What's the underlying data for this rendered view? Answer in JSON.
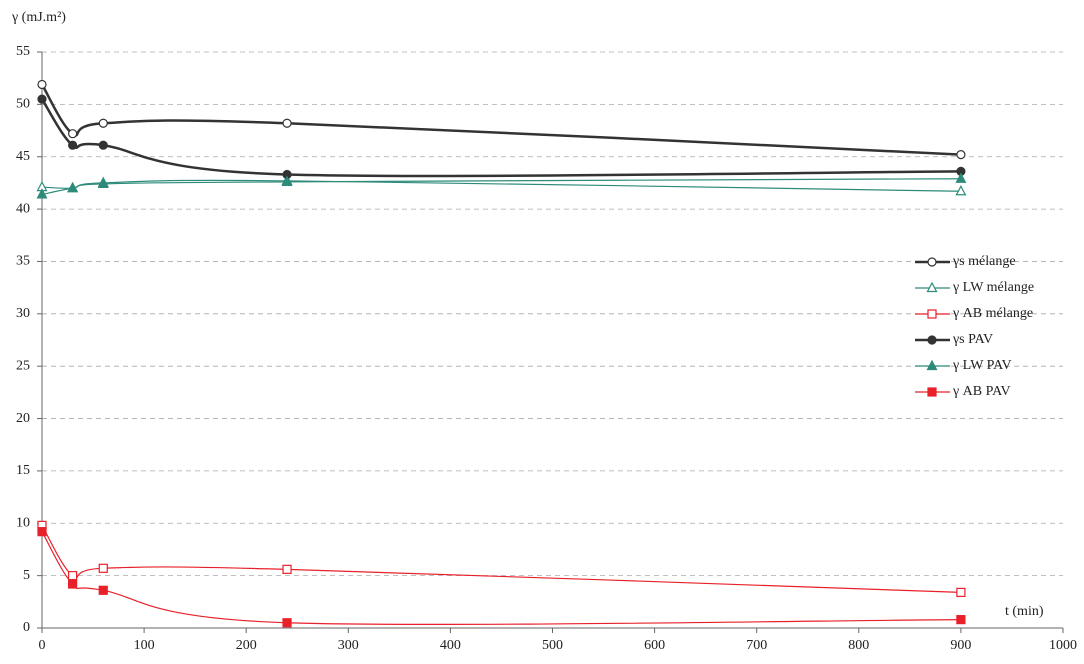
{
  "chart_data": {
    "type": "line",
    "y_label": "γ  (mJ.m²)",
    "x_label": "t (min)",
    "x": [
      0,
      30,
      60,
      240,
      900
    ],
    "series": [
      {
        "name": "γs mélange",
        "color": "#333333",
        "marker": "circle",
        "filled": false,
        "width": 2.5,
        "values": [
          51.9,
          47.2,
          48.2,
          48.2,
          45.2
        ]
      },
      {
        "name": "γ LW mélange",
        "color": "#2e8b7a",
        "marker": "triangle",
        "filled": false,
        "width": 1.2,
        "values": [
          42.1,
          42.0,
          42.5,
          42.7,
          41.7
        ]
      },
      {
        "name": "γ AB mélange",
        "color": "#e8202a",
        "marker": "square",
        "filled": false,
        "width": 1.2,
        "values": [
          9.8,
          5.0,
          5.7,
          5.6,
          3.4
        ]
      },
      {
        "name": "γs PAV",
        "color": "#333333",
        "marker": "circle",
        "filled": true,
        "width": 2.5,
        "values": [
          50.5,
          46.1,
          46.1,
          43.3,
          43.6
        ]
      },
      {
        "name": "γ LW PAV",
        "color": "#2e8b7a",
        "marker": "triangle",
        "filled": true,
        "width": 1.2,
        "values": [
          41.4,
          42.0,
          42.4,
          42.6,
          42.9
        ]
      },
      {
        "name": "γ AB PAV",
        "color": "#e8202a",
        "marker": "square",
        "filled": true,
        "width": 1.2,
        "values": [
          9.2,
          4.2,
          3.6,
          0.5,
          0.8
        ]
      }
    ],
    "xlim": [
      0,
      1000
    ],
    "xticks": [
      0,
      100,
      200,
      300,
      400,
      500,
      600,
      700,
      800,
      900,
      1000
    ],
    "ylim": [
      0,
      55
    ],
    "yticks": [
      0,
      5,
      10,
      15,
      20,
      25,
      30,
      35,
      40,
      45,
      50,
      55
    ],
    "grid": true,
    "legend": "right"
  }
}
